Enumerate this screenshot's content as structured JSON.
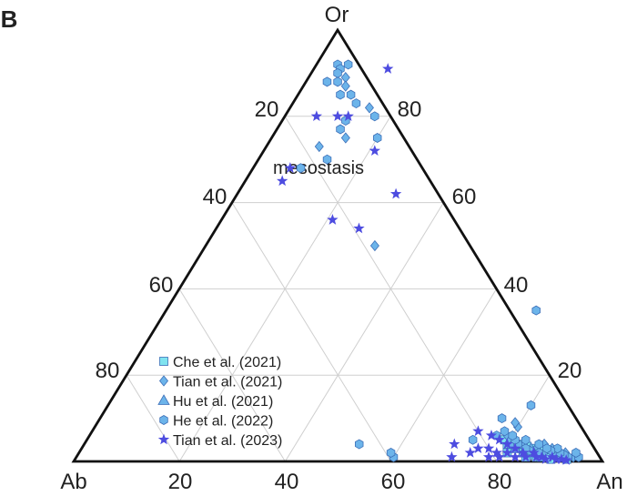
{
  "panel_label": "B",
  "chart_data": {
    "type": "scatter",
    "subtype": "ternary",
    "vertices": {
      "top": "Or",
      "left": "Ab",
      "right": "An"
    },
    "grid": true,
    "grid_step": 20,
    "tick_labels": {
      "bottom": [
        "20",
        "40",
        "60",
        "80"
      ],
      "left": [
        "20",
        "40",
        "60",
        "80"
      ],
      "right": [
        "80",
        "60",
        "40",
        "20"
      ]
    },
    "annotation": "mesostasis",
    "legend_position": "bottom-left",
    "series": [
      {
        "name": "Che et al. (2021)",
        "marker": "square",
        "color": "#7fe3ef",
        "points": [
          [
            92,
            1
          ],
          [
            91,
            1
          ],
          [
            90,
            1.5
          ],
          [
            89,
            2
          ],
          [
            88,
            2
          ],
          [
            87,
            2.5
          ],
          [
            86,
            3
          ],
          [
            85,
            3
          ],
          [
            84,
            3.5
          ],
          [
            83,
            4
          ],
          [
            88,
            1
          ],
          [
            90,
            0.5
          ],
          [
            86,
            1.5
          ],
          [
            84,
            2
          ],
          [
            82,
            3
          ],
          [
            80,
            4
          ],
          [
            79,
            5
          ],
          [
            81,
            2
          ],
          [
            85,
            1
          ],
          [
            89,
            1
          ],
          [
            93,
            0.5
          ],
          [
            87,
            1
          ]
        ]
      },
      {
        "name": "Tian et al. (2021)",
        "marker": "diamond",
        "color": "#6cb4ea",
        "points": [
          [
            7,
            89
          ],
          [
            8,
            87
          ],
          [
            15,
            82
          ],
          [
            14,
            75
          ],
          [
            10,
            73
          ],
          [
            32,
            50
          ],
          [
            80,
            8
          ],
          [
            79,
            9
          ],
          [
            79,
            6
          ],
          [
            94,
            1
          ],
          [
            92,
            2
          ],
          [
            90,
            2
          ],
          [
            89,
            3
          ],
          [
            88,
            2
          ],
          [
            87,
            4
          ],
          [
            86,
            3
          ],
          [
            84,
            3
          ],
          [
            82,
            4
          ]
        ]
      },
      {
        "name": "Hu et al. (2021)",
        "marker": "triangle",
        "color": "#6cb4ea",
        "points": [
          [
            86,
            2
          ],
          [
            85,
            3
          ],
          [
            83,
            4
          ],
          [
            82,
            3
          ],
          [
            80,
            5
          ],
          [
            88,
            1
          ],
          [
            84,
            2
          ],
          [
            81,
            4
          ]
        ]
      },
      {
        "name": "He et al. (2022)",
        "marker": "hexagon",
        "color": "#6cb4ea",
        "points": [
          [
            4,
            92
          ],
          [
            5,
            91
          ],
          [
            6,
            92
          ],
          [
            5,
            90
          ],
          [
            4,
            88
          ],
          [
            6,
            88
          ],
          [
            8,
            85
          ],
          [
            10,
            85
          ],
          [
            12,
            83
          ],
          [
            17,
            80
          ],
          [
            20,
            75
          ],
          [
            13,
            70
          ],
          [
            9,
            68
          ],
          [
            12,
            77
          ],
          [
            12,
            79
          ],
          [
            70,
            35
          ],
          [
            80,
            13
          ],
          [
            76,
            10
          ],
          [
            73,
            5
          ],
          [
            52,
            4
          ],
          [
            60,
            1
          ],
          [
            59,
            2
          ],
          [
            95,
            1
          ],
          [
            94,
            2
          ],
          [
            93,
            1
          ],
          [
            92,
            1.5
          ],
          [
            91,
            2
          ],
          [
            90,
            3
          ],
          [
            89,
            2.5
          ],
          [
            88,
            3
          ],
          [
            87,
            2
          ],
          [
            86,
            4
          ],
          [
            85,
            2.5
          ],
          [
            84,
            3
          ],
          [
            83,
            5
          ],
          [
            82,
            4
          ],
          [
            81,
            5
          ],
          [
            80,
            6
          ],
          [
            78,
            7
          ],
          [
            77,
            6
          ]
        ]
      },
      {
        "name": "Tian et al. (2023)",
        "marker": "star",
        "color": "#4d4ce0",
        "points": [
          [
            10,
            80
          ],
          [
            12,
            80
          ],
          [
            6,
            80
          ],
          [
            7,
            65
          ],
          [
            7,
            68
          ],
          [
            21,
            72
          ],
          [
            14,
            91
          ],
          [
            27,
            54
          ],
          [
            30,
            62
          ],
          [
            21,
            56
          ],
          [
            75,
            3
          ],
          [
            73,
            7
          ],
          [
            76,
            6
          ],
          [
            78,
            5
          ],
          [
            80,
            4
          ],
          [
            82,
            3
          ],
          [
            84,
            2
          ],
          [
            86,
            2
          ],
          [
            88,
            1
          ],
          [
            90,
            1
          ],
          [
            92,
            0.5
          ],
          [
            70,
            4
          ],
          [
            71,
            1
          ],
          [
            74,
            2
          ],
          [
            77,
            3
          ],
          [
            79,
            2
          ],
          [
            81,
            2
          ],
          [
            83,
            1
          ],
          [
            85,
            1
          ],
          [
            87,
            1
          ],
          [
            89,
            0.5
          ],
          [
            91,
            0.5
          ],
          [
            93,
            0.3
          ],
          [
            78,
            1
          ],
          [
            80,
            1
          ]
        ]
      }
    ]
  }
}
